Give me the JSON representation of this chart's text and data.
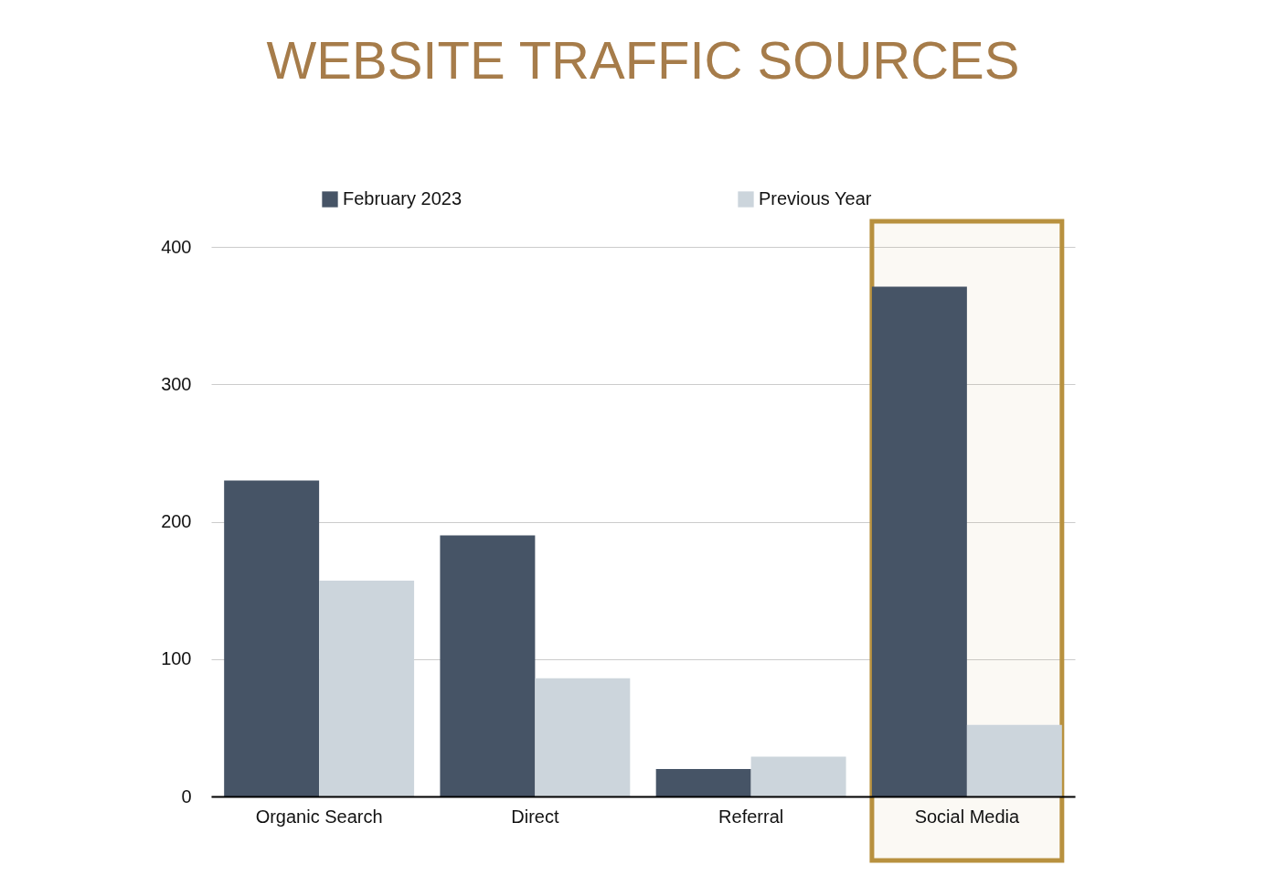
{
  "chart_data": {
    "type": "bar",
    "title": "WEBSITE TRAFFIC SOURCES",
    "categories": [
      "Organic Search",
      "Direct",
      "Referral",
      "Social Media"
    ],
    "series": [
      {
        "name": "February 2023",
        "color": "#465466",
        "values": [
          230,
          190,
          20,
          371
        ]
      },
      {
        "name": "Previous Year",
        "color": "#ccd5dc",
        "values": [
          157,
          86,
          29,
          52
        ]
      }
    ],
    "ylim": [
      0,
      400
    ],
    "yticks": [
      0,
      100,
      200,
      300,
      400
    ],
    "grid": "y",
    "legend": "top",
    "bands": [
      {
        "axis": "x",
        "from": "Social Media",
        "to": "Social Media",
        "color": "#b8913f"
      }
    ]
  }
}
